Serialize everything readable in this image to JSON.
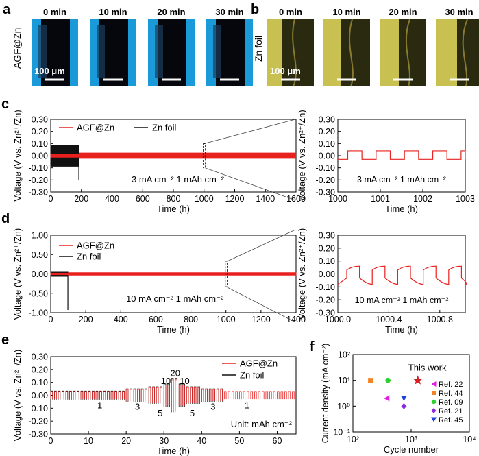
{
  "panel_labels": {
    "a": "a",
    "b": "b",
    "c": "c",
    "d": "d",
    "e": "e",
    "f": "f"
  },
  "micro": {
    "a": {
      "side_label": "AGF@Zn",
      "times": [
        "0 min",
        "10 min",
        "20 min",
        "30 min"
      ],
      "scale_label": "100 μm"
    },
    "b": {
      "side_label": "Zn foil",
      "times": [
        "0 min",
        "10 min",
        "20 min",
        "30 min"
      ],
      "scale_label": "100 μm"
    }
  },
  "colors": {
    "agf": "#e8201e",
    "zn": "#111111",
    "star": "#d42020",
    "tri_magenta": "#e020e0",
    "sq_orange": "#f58220",
    "circ_green": "#30d030",
    "dia_purple": "#8a2be2",
    "tri_blue": "#2040e0",
    "micro_a": "#1a9ad8",
    "micro_b": "#c8c050"
  },
  "chart_data": [
    {
      "id": "c_main",
      "type": "line",
      "ylabel": "Voltage (V vs. Zn²⁺/Zn)",
      "xlabel": "Time (h)",
      "xlim": [
        0,
        1600
      ],
      "ylim": [
        -0.3,
        0.3
      ],
      "xticks": [
        "0",
        "200",
        "400",
        "600",
        "800",
        "1000",
        "1200",
        "1400",
        "1600"
      ],
      "yticks": [
        "-0.30",
        "-0.20",
        "-0.10",
        "0.00",
        "0.10",
        "0.20",
        "0.30"
      ],
      "legend": [
        "AGF@Zn",
        "Zn foil"
      ],
      "annotation": "3 mA cm⁻² 1 mAh cm⁻²",
      "series": [
        {
          "name": "AGF@Zn",
          "x_range": [
            0,
            1600
          ],
          "amplitude_v": 0.025
        },
        {
          "name": "Zn foil",
          "x_range": [
            0,
            185
          ],
          "amplitude_v": 0.09,
          "failure_v": -0.2
        }
      ]
    },
    {
      "id": "c_zoom",
      "type": "line",
      "ylabel": "Voltage (V vs. Zn²⁺/Zn)",
      "xlabel": "Time (h)",
      "xlim": [
        1000,
        1003
      ],
      "ylim": [
        -0.3,
        0.3
      ],
      "xticks": [
        "1000",
        "1001",
        "1002",
        "1003"
      ],
      "yticks": [
        "-0.30",
        "-0.20",
        "-0.10",
        "0.00",
        "0.10",
        "0.20",
        "0.30"
      ],
      "annotation": "3 mA cm⁻² 1 mAh cm⁻²",
      "series": [
        {
          "name": "AGF@Zn",
          "charge_v": 0.04,
          "discharge_v": -0.03,
          "period_h": 0.667
        }
      ]
    },
    {
      "id": "d_main",
      "type": "line",
      "ylabel": "Voltage (V vs. Zn²⁺/Zn)",
      "xlabel": "Time (h)",
      "xlim": [
        0,
        1400
      ],
      "ylim": [
        -1.0,
        1.0
      ],
      "xticks": [
        "0",
        "200",
        "400",
        "600",
        "800",
        "1000",
        "1200",
        "1400"
      ],
      "yticks": [
        "-1.00",
        "-0.50",
        "0.00",
        "0.50",
        "1.00"
      ],
      "legend": [
        "AGF@Zn",
        "Zn foil"
      ],
      "annotation": "10 mA cm⁻² 1 mAh cm⁻²",
      "series": [
        {
          "name": "AGF@Zn",
          "x_range": [
            0,
            1400
          ],
          "amplitude_v": 0.07
        },
        {
          "name": "Zn foil",
          "x_range": [
            0,
            100
          ],
          "amplitude_v": 0.07,
          "failure_v": -0.93
        }
      ]
    },
    {
      "id": "d_zoom",
      "type": "line",
      "ylabel": "Voltage (V vs. Zn²⁺/Zn)",
      "xlabel": "Time (h)",
      "xlim": [
        1000.0,
        1001.0
      ],
      "ylim": [
        -0.3,
        0.3
      ],
      "xticks": [
        "1000.0",
        "1000.4",
        "1000.8"
      ],
      "yticks": [
        "-0.30",
        "-0.20",
        "-0.10",
        "0.00",
        "0.10",
        "0.20",
        "0.30"
      ],
      "annotation": "10 mA cm⁻² 1 mAh cm⁻²",
      "series": [
        {
          "name": "AGF@Zn",
          "charge_v": 0.06,
          "discharge_v": -0.08,
          "period_h": 0.2
        }
      ]
    },
    {
      "id": "e_rate",
      "type": "line",
      "ylabel": "Voltage (V vs. Zn²⁺/Zn)",
      "xlabel": "Time (h)",
      "xlim": [
        0,
        65
      ],
      "ylim": [
        -0.3,
        0.3
      ],
      "xticks": [
        "0",
        "10",
        "20",
        "30",
        "40",
        "50",
        "60"
      ],
      "yticks": [
        "-0.30",
        "-0.20",
        "-0.10",
        "0.00",
        "0.10",
        "0.20",
        "0.30"
      ],
      "legend": [
        "AGF@Zn",
        "Zn foil"
      ],
      "note": "Unit: mAh cm⁻²",
      "rate_labels": [
        "1",
        "3",
        "5",
        "10",
        "20",
        "10",
        "5",
        "3",
        "1"
      ],
      "segments": [
        {
          "label": "1",
          "start_h": 0,
          "end_h": 20,
          "amplitude_v": 0.03
        },
        {
          "label": "3",
          "start_h": 20,
          "end_h": 26,
          "amplitude_v": 0.045
        },
        {
          "label": "5",
          "start_h": 26,
          "end_h": 30,
          "amplitude_v": 0.06
        },
        {
          "label": "10",
          "start_h": 30,
          "end_h": 32,
          "amplitude_v": 0.08
        },
        {
          "label": "20",
          "start_h": 32,
          "end_h": 34,
          "amplitude_v": 0.12
        },
        {
          "label": "10",
          "start_h": 34,
          "end_h": 36,
          "amplitude_v": 0.08
        },
        {
          "label": "5",
          "start_h": 36,
          "end_h": 40,
          "amplitude_v": 0.06
        },
        {
          "label": "3",
          "start_h": 40,
          "end_h": 46,
          "amplitude_v": 0.045
        },
        {
          "label": "1",
          "start_h": 46,
          "end_h": 65,
          "amplitude_v": 0.03
        }
      ],
      "zn_end_h": 46
    },
    {
      "id": "f_compare",
      "type": "scatter",
      "xlabel": "Cycle number",
      "ylabel": "Current density (mA cm⁻²)",
      "xscale": "log",
      "yscale": "log",
      "xlim": [
        100,
        10000
      ],
      "ylim": [
        0.1,
        100
      ],
      "xticks": [
        "10²",
        "10³",
        "10⁴"
      ],
      "yticks": [
        "10⁻¹",
        "10⁰",
        "10¹",
        "10²"
      ],
      "annotation": "This work",
      "points": [
        {
          "label": "This work",
          "x": 1300,
          "y": 10,
          "marker": "star"
        },
        {
          "label": "Ref. 22",
          "x": 380,
          "y": 2,
          "marker": "triangle-left"
        },
        {
          "label": "Ref. 44",
          "x": 200,
          "y": 10,
          "marker": "square"
        },
        {
          "label": "Ref. 09",
          "x": 400,
          "y": 10,
          "marker": "circle"
        },
        {
          "label": "Ref. 21",
          "x": 750,
          "y": 1,
          "marker": "diamond"
        },
        {
          "label": "Ref. 45",
          "x": 750,
          "y": 2,
          "marker": "triangle-down"
        }
      ]
    }
  ]
}
